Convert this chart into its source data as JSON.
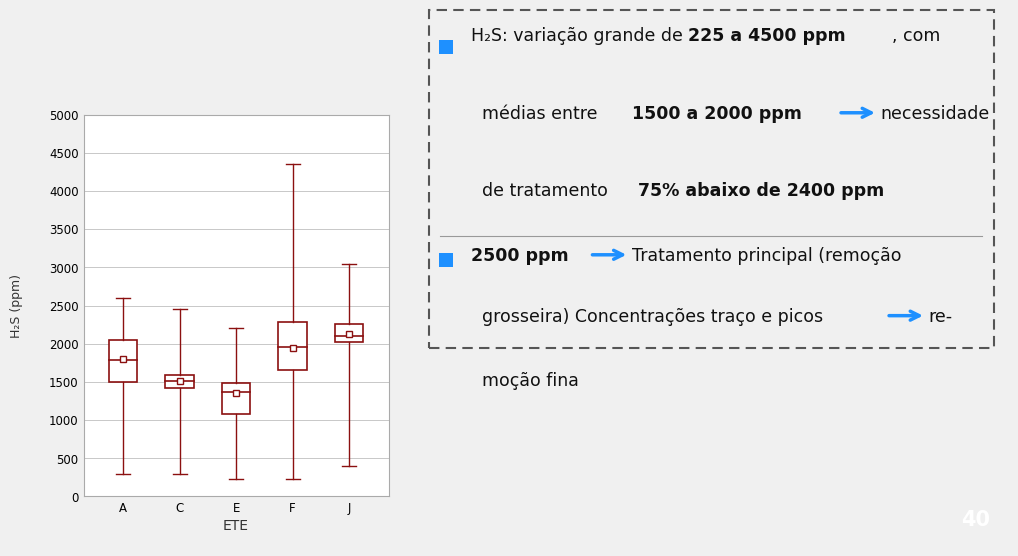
{
  "fig_bg": "#f0f0f0",
  "plot_area_bg": "#fef8ee",
  "plot_white": "#ffffff",
  "box_color": "#8b1010",
  "grid_color": "#c8c8c8",
  "categories": [
    "A",
    "C",
    "E",
    "F",
    "J"
  ],
  "xlabel": "ETE",
  "ylabel": "H₂S (ppm)",
  "ylim": [
    0,
    5000
  ],
  "yticks": [
    0,
    500,
    1000,
    1500,
    2000,
    2500,
    3000,
    3500,
    4000,
    4500,
    5000
  ],
  "boxes": [
    {
      "label": "A",
      "whislo": 300,
      "q1": 1500,
      "med": 1790,
      "mean": 1800,
      "q3": 2050,
      "whishi": 2600
    },
    {
      "label": "C",
      "whislo": 300,
      "q1": 1420,
      "med": 1510,
      "mean": 1510,
      "q3": 1590,
      "whishi": 2450
    },
    {
      "label": "E",
      "whislo": 225,
      "q1": 1080,
      "med": 1370,
      "mean": 1360,
      "q3": 1490,
      "whishi": 2200
    },
    {
      "label": "F",
      "whislo": 225,
      "q1": 1650,
      "med": 1960,
      "mean": 1940,
      "q3": 2280,
      "whishi": 4350
    },
    {
      "label": "J",
      "whislo": 400,
      "q1": 2020,
      "med": 2100,
      "mean": 2130,
      "q3": 2260,
      "whishi": 3050
    }
  ],
  "panel_bg": "#d3d3d3",
  "panel_border": "#555555",
  "bullet_color": "#1e90ff",
  "text_color": "#111111",
  "page_number": "40",
  "page_num_bg": "#1e90ff",
  "page_num_fg": "#ffffff"
}
